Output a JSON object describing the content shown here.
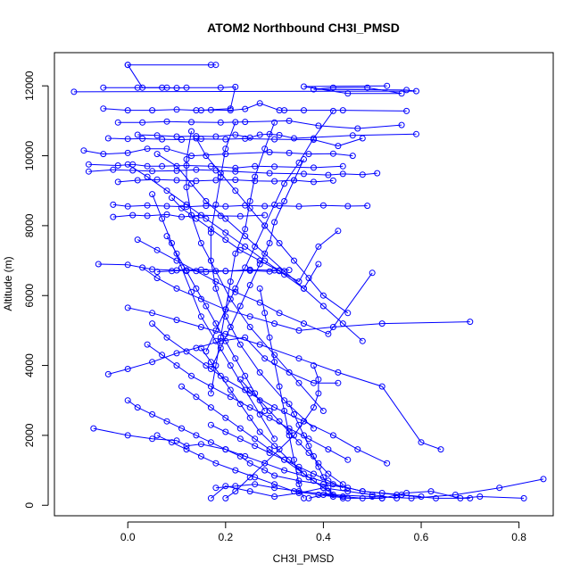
{
  "chart_data": {
    "type": "line",
    "title": "ATOM2 Northbound CH3I_PMSD",
    "xlabel": "CH3I_PMSD",
    "ylabel": "Altitude (m)",
    "xlim": [
      -0.15,
      0.87
    ],
    "ylim": [
      -300,
      12950
    ],
    "x_ticks": [
      0.0,
      0.2,
      0.4,
      0.6,
      0.8
    ],
    "x_tick_labels": [
      "0.0",
      "0.2",
      "0.4",
      "0.6",
      "0.8"
    ],
    "y_ticks": [
      0,
      2000,
      4000,
      6000,
      8000,
      10000,
      12000
    ],
    "y_tick_labels": [
      "0",
      "2000",
      "4000",
      "6000",
      "8000",
      "10000",
      "12000"
    ],
    "grid": false,
    "marker": "open-circle",
    "color": "#0000ff",
    "series": [
      {
        "x": [
          0.0,
          0.17,
          0.18,
          0.0,
          0.03,
          0.08
        ],
        "y": [
          12600,
          12600,
          12600,
          12600,
          11950,
          11950
        ]
      },
      {
        "x": [
          -0.11,
          0.59,
          0.57,
          0.38,
          0.42,
          0.49,
          0.56,
          0.45,
          0.36,
          0.53
        ],
        "y": [
          11830,
          11850,
          11880,
          11900,
          11950,
          11950,
          11780,
          11780,
          11980,
          12000
        ]
      },
      {
        "x": [
          -0.05,
          0.02,
          0.07,
          0.1,
          0.12,
          0.19,
          0.22,
          0.21,
          0.15
        ],
        "y": [
          11950,
          11950,
          11950,
          11940,
          11950,
          11950,
          11970,
          11350,
          11300
        ]
      },
      {
        "x": [
          -0.05,
          0.0,
          0.05,
          0.1,
          0.14,
          0.17,
          0.21,
          0.24,
          0.27,
          0.31,
          0.32,
          0.36,
          0.44,
          0.57
        ],
        "y": [
          11350,
          11300,
          11300,
          11320,
          11300,
          11310,
          11300,
          11340,
          11500,
          11300,
          11300,
          11300,
          11300,
          11280
        ]
      },
      {
        "x": [
          -0.02,
          0.03,
          0.08,
          0.13,
          0.19,
          0.24,
          0.33,
          0.39,
          0.47,
          0.56
        ],
        "y": [
          10950,
          10950,
          10980,
          10960,
          10950,
          10970,
          11000,
          10860,
          10780,
          10880
        ]
      },
      {
        "x": [
          0.02,
          0.06,
          0.1,
          0.14,
          0.18,
          0.22,
          0.25,
          0.27,
          0.29,
          0.31,
          0.34,
          0.46,
          0.59
        ],
        "y": [
          10600,
          10580,
          10550,
          10560,
          10550,
          10600,
          10520,
          10600,
          10620,
          10590,
          10500,
          10580,
          10620
        ]
      },
      {
        "x": [
          -0.04,
          0.0,
          0.03,
          0.07,
          0.11,
          0.15,
          0.2,
          0.24,
          0.3,
          0.38,
          0.43,
          0.48
        ],
        "y": [
          10500,
          10480,
          10490,
          10470,
          10460,
          10480,
          10470,
          10490,
          10470,
          10460,
          10280,
          10500
        ]
      },
      {
        "x": [
          -0.09,
          -0.05,
          0.0,
          0.04,
          0.08,
          0.13,
          0.2,
          0.29,
          0.33,
          0.37,
          0.42,
          0.46
        ],
        "y": [
          10150,
          10050,
          10080,
          10200,
          10200,
          10000,
          10050,
          10100,
          10080,
          10050,
          10060,
          10000
        ]
      },
      {
        "x": [
          -0.08,
          -0.02,
          0.01,
          0.04,
          0.07,
          0.12,
          0.17,
          0.22,
          0.26,
          0.3,
          0.38,
          0.44
        ],
        "y": [
          9750,
          9720,
          9750,
          9700,
          9700,
          9720,
          9700,
          9650,
          9700,
          9690,
          9660,
          9700
        ]
      },
      {
        "x": [
          -0.08,
          -0.03,
          0.01,
          0.05,
          0.1,
          0.14,
          0.18,
          0.22,
          0.29,
          0.36,
          0.41,
          0.44,
          0.48,
          0.51
        ],
        "y": [
          9550,
          9600,
          9580,
          9560,
          9570,
          9600,
          9580,
          9550,
          9500,
          9480,
          9450,
          9480,
          9460,
          9500
        ]
      },
      {
        "x": [
          -0.02,
          0.02,
          0.06,
          0.1,
          0.14,
          0.18,
          0.22,
          0.26,
          0.3,
          0.34,
          0.38,
          0.42
        ],
        "y": [
          9250,
          9300,
          9320,
          9300,
          9280,
          9300,
          9310,
          9280,
          9270,
          9300,
          9250,
          9290
        ]
      },
      {
        "x": [
          -0.03,
          0.0,
          0.04,
          0.08,
          0.12,
          0.16,
          0.2,
          0.24,
          0.28,
          0.31,
          0.35,
          0.4,
          0.45,
          0.49
        ],
        "y": [
          8600,
          8550,
          8580,
          8560,
          8540,
          8570,
          8550,
          8580,
          8560,
          8570,
          8550,
          8580,
          8560,
          8570
        ]
      },
      {
        "x": [
          -0.03,
          0.01,
          0.04,
          0.08,
          0.11,
          0.15,
          0.19,
          0.23,
          0.28
        ],
        "y": [
          8250,
          8300,
          8280,
          8320,
          8250,
          8300,
          8280,
          8270,
          8300
        ]
      },
      {
        "x": [
          -0.06,
          0.0,
          0.05,
          0.1,
          0.15,
          0.2,
          0.25,
          0.3,
          0.33
        ],
        "y": [
          6900,
          6880,
          6750,
          6720,
          6740,
          6700,
          6740,
          6720,
          6730
        ]
      },
      {
        "x": [
          0.06,
          0.09,
          0.12,
          0.16,
          0.2,
          0.25,
          0.29,
          0.31
        ],
        "y": [
          6680,
          6700,
          6720,
          6680,
          6700,
          6710,
          6690,
          6720
        ]
      },
      {
        "x": [
          -0.07,
          0.0,
          0.05,
          0.1,
          0.12,
          0.15,
          0.2,
          0.23,
          0.25,
          0.28,
          0.3,
          0.35,
          0.4,
          0.45,
          0.48,
          0.52,
          0.56,
          0.6
        ],
        "y": [
          2200,
          2000,
          1900,
          1850,
          1700,
          1750,
          1600,
          1400,
          1200,
          1000,
          850,
          700,
          600,
          500,
          400,
          350,
          300,
          250
        ]
      },
      {
        "x": [
          0.0,
          0.02,
          0.05,
          0.08,
          0.11,
          0.14,
          0.17,
          0.2,
          0.24,
          0.28,
          0.32,
          0.37,
          0.42,
          0.48,
          0.55,
          0.63,
          0.7
        ],
        "y": [
          3000,
          2800,
          2600,
          2400,
          2200,
          2000,
          1800,
          1600,
          1400,
          1200,
          1000,
          800,
          600,
          400,
          300,
          200,
          200
        ]
      },
      {
        "x": [
          0.55,
          0.5,
          0.45,
          0.4,
          0.35,
          0.3,
          0.25,
          0.2,
          0.17
        ],
        "y": [
          200,
          300,
          400,
          500,
          350,
          250,
          400,
          550,
          200
        ]
      },
      {
        "x": [
          0.18,
          0.22,
          0.26,
          0.3,
          0.35,
          0.42,
          0.5,
          0.58,
          0.67,
          0.76,
          0.85
        ],
        "y": [
          500,
          550,
          600,
          500,
          400,
          300,
          250,
          200,
          300,
          500,
          750
        ]
      },
      {
        "x": [
          0.37,
          0.4,
          0.44,
          0.48,
          0.52,
          0.57,
          0.62,
          0.68,
          0.72,
          0.81
        ],
        "y": [
          200,
          300,
          250,
          200,
          200,
          350,
          400,
          200,
          250,
          200
        ]
      },
      {
        "x": [
          0.05,
          0.08,
          0.12,
          0.16,
          0.2,
          0.25,
          0.3,
          0.36,
          0.42,
          0.47,
          0.53
        ],
        "y": [
          5200,
          4800,
          4400,
          4000,
          3600,
          3200,
          2800,
          2400,
          2000,
          1600,
          1200
        ]
      },
      {
        "x": [
          0.0,
          0.05,
          0.1,
          0.15,
          0.2,
          0.27,
          0.35,
          0.43,
          0.52,
          0.6,
          0.64
        ],
        "y": [
          5650,
          5500,
          5300,
          5100,
          4900,
          4600,
          4200,
          3800,
          3400,
          1800,
          1600
        ]
      },
      {
        "x": [
          0.03,
          0.06,
          0.1,
          0.15,
          0.2,
          0.25,
          0.3,
          0.35,
          0.42,
          0.52,
          0.7
        ],
        "y": [
          6800,
          6500,
          6200,
          5900,
          5600,
          5400,
          5200,
          5000,
          5100,
          5200,
          5250
        ]
      },
      {
        "x": [
          -0.04,
          0.0,
          0.05,
          0.1,
          0.14,
          0.19,
          0.24,
          0.28,
          0.33,
          0.38,
          0.43
        ],
        "y": [
          3750,
          3900,
          4100,
          4350,
          4500,
          4700,
          4800,
          4200,
          3800,
          3500,
          3500
        ]
      },
      {
        "x": [
          0.02,
          0.06,
          0.1,
          0.14,
          0.18,
          0.22,
          0.27,
          0.31,
          0.36,
          0.41,
          0.5
        ],
        "y": [
          7600,
          7300,
          7000,
          6700,
          6400,
          6100,
          5800,
          5500,
          5200,
          4900,
          6650
        ]
      },
      {
        "x": [
          0.09,
          0.11,
          0.14,
          0.17,
          0.2,
          0.23,
          0.27,
          0.31,
          0.35,
          0.39,
          0.43
        ],
        "y": [
          8800,
          8500,
          8200,
          7900,
          7600,
          7300,
          7000,
          6700,
          6400,
          7400,
          7850
        ]
      },
      {
        "x": [
          0.0,
          0.04,
          0.08,
          0.12,
          0.16,
          0.2,
          0.24,
          0.28,
          0.32,
          0.36,
          0.39
        ],
        "y": [
          9750,
          9400,
          9000,
          8600,
          8200,
          7800,
          7400,
          7000,
          6600,
          6200,
          6900
        ]
      },
      {
        "x": [
          0.14,
          0.16,
          0.19,
          0.22,
          0.25,
          0.28,
          0.31,
          0.34,
          0.37,
          0.4,
          0.45
        ],
        "y": [
          10500,
          10000,
          9500,
          9000,
          8500,
          8000,
          7500,
          7000,
          6500,
          6000,
          5500
        ]
      },
      {
        "x": [
          0.3,
          0.28,
          0.26,
          0.25,
          0.24,
          0.22,
          0.21,
          0.2,
          0.19,
          0.18,
          0.17
        ],
        "y": [
          10950,
          10200,
          9400,
          8700,
          7900,
          7200,
          6400,
          5600,
          4800,
          4000,
          3200
        ]
      },
      {
        "x": [
          0.36,
          0.34,
          0.32,
          0.3,
          0.29,
          0.27,
          0.25,
          0.23,
          0.21,
          0.19,
          0.17
        ],
        "y": [
          9900,
          9300,
          8700,
          8100,
          7500,
          6900,
          6300,
          5700,
          5100,
          4500,
          3900
        ]
      },
      {
        "x": [
          0.42,
          0.38,
          0.35,
          0.32,
          0.3,
          0.28,
          0.26,
          0.24,
          0.22,
          0.2,
          0.18,
          0.16
        ],
        "y": [
          11280,
          10500,
          9800,
          9200,
          8600,
          8000,
          7400,
          6800,
          6200,
          5600,
          5000,
          4400
        ]
      },
      {
        "x": [
          0.06,
          0.1,
          0.13,
          0.16,
          0.2,
          0.24,
          0.28,
          0.32,
          0.36,
          0.4,
          0.44,
          0.48
        ],
        "y": [
          10050,
          9700,
          9200,
          8700,
          8200,
          7700,
          7200,
          6700,
          6200,
          5700,
          5200,
          4700
        ]
      },
      {
        "x": [
          0.13,
          0.12,
          0.12,
          0.13,
          0.15,
          0.18,
          0.21,
          0.25,
          0.3,
          0.35,
          0.4
        ],
        "y": [
          10700,
          9900,
          9100,
          8300,
          7500,
          6700,
          5900,
          5100,
          4300,
          3500,
          2700
        ]
      },
      {
        "x": [
          0.22,
          0.2,
          0.19,
          0.18,
          0.17,
          0.17,
          0.18,
          0.2,
          0.23,
          0.27,
          0.32,
          0.38
        ],
        "y": [
          10960,
          10200,
          9400,
          8600,
          7800,
          7000,
          6200,
          5400,
          4600,
          3800,
          3000,
          2200
        ]
      },
      {
        "x": [
          0.08,
          0.1,
          0.12,
          0.14,
          0.16,
          0.18,
          0.2,
          0.22,
          0.24,
          0.26,
          0.28
        ],
        "y": [
          7700,
          7200,
          6700,
          6200,
          5700,
          5200,
          4700,
          4200,
          3700,
          3200,
          2700
        ]
      },
      {
        "x": [
          0.05,
          0.07,
          0.09,
          0.11,
          0.13,
          0.15,
          0.18,
          0.21,
          0.24,
          0.27,
          0.3
        ],
        "y": [
          8900,
          8200,
          7500,
          6800,
          6100,
          5400,
          4700,
          4000,
          3300,
          2600,
          1900
        ]
      },
      {
        "x": [
          0.27,
          0.28,
          0.29,
          0.3,
          0.31,
          0.32,
          0.33,
          0.34,
          0.35,
          0.36
        ],
        "y": [
          6200,
          5500,
          4800,
          4100,
          3400,
          2700,
          2000,
          1300,
          600,
          200
        ]
      },
      {
        "x": [
          0.33,
          0.34,
          0.35,
          0.36,
          0.37,
          0.38,
          0.39,
          0.4,
          0.41,
          0.42
        ],
        "y": [
          2900,
          2600,
          2300,
          2000,
          1700,
          1400,
          1100,
          800,
          500,
          250
        ]
      },
      {
        "x": [
          0.23,
          0.25,
          0.27,
          0.29,
          0.31,
          0.33,
          0.35,
          0.37,
          0.39,
          0.41,
          0.44
        ],
        "y": [
          3600,
          3300,
          3000,
          2700,
          2400,
          2100,
          1800,
          1500,
          1200,
          900,
          600
        ]
      },
      {
        "x": [
          0.15,
          0.17,
          0.19,
          0.21,
          0.23,
          0.25,
          0.27,
          0.3,
          0.33,
          0.36,
          0.4
        ],
        "y": [
          4500,
          4100,
          3700,
          3300,
          2900,
          2500,
          2100,
          1700,
          1300,
          900,
          500
        ]
      },
      {
        "x": [
          0.11,
          0.14,
          0.17,
          0.2,
          0.23,
          0.26,
          0.29,
          0.32,
          0.35,
          0.38,
          0.41,
          0.44
        ],
        "y": [
          3400,
          3100,
          2800,
          2500,
          2200,
          1900,
          1600,
          1300,
          1000,
          700,
          400,
          200
        ]
      },
      {
        "x": [
          0.04,
          0.07,
          0.1,
          0.13,
          0.17,
          0.21,
          0.25,
          0.29,
          0.33,
          0.37,
          0.41,
          0.45
        ],
        "y": [
          4600,
          4300,
          4000,
          3700,
          3400,
          3100,
          2800,
          2500,
          2200,
          1900,
          1600,
          1300
        ]
      },
      {
        "x": [
          0.38,
          0.39,
          0.39,
          0.38,
          0.36,
          0.34,
          0.31,
          0.28,
          0.25,
          0.22,
          0.2
        ],
        "y": [
          4000,
          3600,
          3200,
          2800,
          2400,
          2000,
          1600,
          1200,
          800,
          400,
          200
        ]
      },
      {
        "x": [
          0.17,
          0.2,
          0.23,
          0.26,
          0.29,
          0.32,
          0.35,
          0.38,
          0.41,
          0.44
        ],
        "y": [
          2300,
          2100,
          1900,
          1700,
          1500,
          1300,
          1100,
          900,
          700,
          500
        ]
      },
      {
        "x": [
          0.06,
          0.09,
          0.12,
          0.15,
          0.18,
          0.22,
          0.26,
          0.3,
          0.34,
          0.39,
          0.45,
          0.52
        ],
        "y": [
          2000,
          1800,
          1600,
          1400,
          1200,
          1000,
          800,
          600,
          400,
          300,
          200,
          200
        ]
      }
    ]
  }
}
